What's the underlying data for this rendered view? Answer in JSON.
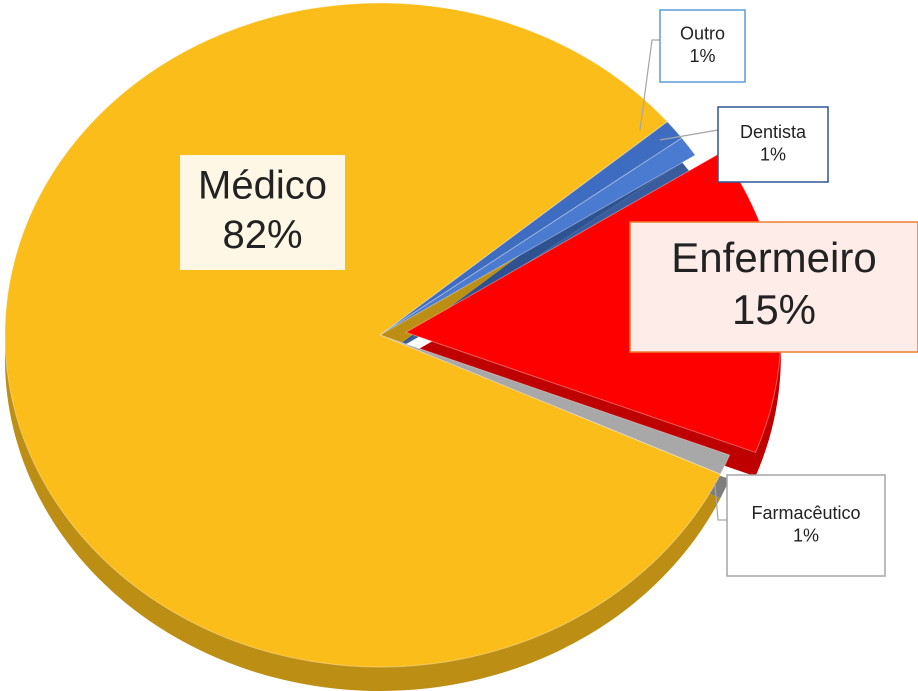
{
  "chart_data": {
    "type": "pie",
    "categories": [
      "Outro",
      "Dentista",
      "Enfermeiro",
      "Farmacêutico",
      "Médico"
    ],
    "values": [
      1,
      1,
      15,
      1,
      82
    ],
    "value_labels": [
      "1%",
      "1%",
      "15%",
      "1%",
      "82%"
    ],
    "colors": [
      "#3d6cc0",
      "#4a7bd0",
      "#ff0000",
      "#a8a8a8",
      "#fbbd19"
    ]
  }
}
